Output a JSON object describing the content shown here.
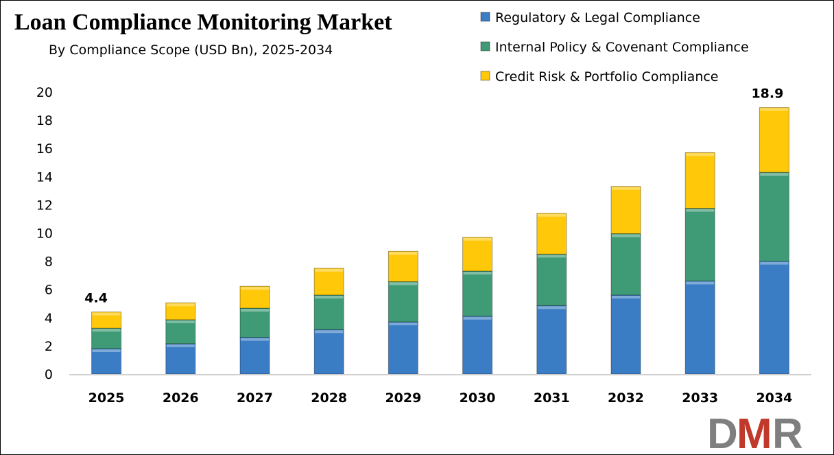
{
  "chart_data": {
    "type": "bar",
    "stacked": true,
    "title": "Loan Compliance Monitoring Market",
    "subtitle": "By Compliance Scope (USD Bn), 2025-2034",
    "xlabel": "",
    "ylabel": "",
    "ylim": [
      0,
      20
    ],
    "yticks": [
      0,
      2,
      4,
      6,
      8,
      10,
      12,
      14,
      16,
      18,
      20
    ],
    "grid": false,
    "legend_position": "top-right",
    "categories": [
      "2025",
      "2026",
      "2027",
      "2028",
      "2029",
      "2030",
      "2031",
      "2032",
      "2033",
      "2034"
    ],
    "series": [
      {
        "name": "Regulatory & Legal Compliance",
        "color": "#3A7DC4",
        "values": [
          1.8,
          2.15,
          2.6,
          3.15,
          3.7,
          4.1,
          4.85,
          5.6,
          6.6,
          8.0
        ]
      },
      {
        "name": "Internal Policy & Covenant Compliance",
        "color": "#3F9A76",
        "values": [
          1.45,
          1.7,
          2.07,
          2.45,
          2.85,
          3.2,
          3.65,
          4.35,
          5.15,
          6.3
        ]
      },
      {
        "name": "Credit Risk & Portfolio Compliance",
        "color": "#FFC808",
        "values": [
          1.15,
          1.2,
          1.55,
          1.9,
          2.15,
          2.4,
          2.9,
          3.35,
          3.95,
          4.6
        ]
      }
    ],
    "data_labels": [
      {
        "category": "2025",
        "text": "4.4"
      },
      {
        "category": "2034",
        "text": "18.9"
      }
    ]
  },
  "logo": {
    "text": "DMR",
    "colors": [
      "#7F7F7F",
      "#C0392B",
      "#7F7F7F"
    ]
  }
}
